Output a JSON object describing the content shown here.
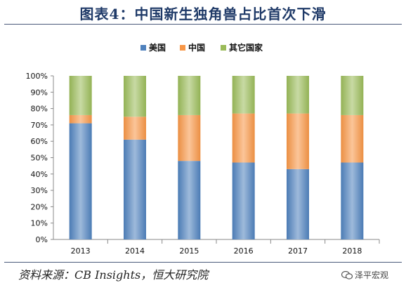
{
  "header": {
    "title": "图表4：中国新生独角兽占比首次下滑"
  },
  "footer": {
    "source": "资料来源：CB Insights，恒大研究院",
    "logo_text": "泽平宏观",
    "logo_icon": "wechat-icon"
  },
  "chart_data": {
    "type": "bar",
    "stacked": true,
    "categories": [
      "2013",
      "2014",
      "2015",
      "2016",
      "2017",
      "2018"
    ],
    "series": [
      {
        "name": "美国",
        "color": "#4f81bd",
        "values": [
          71,
          61,
          48,
          47,
          43,
          47
        ]
      },
      {
        "name": "中国",
        "color": "#f79646",
        "values": [
          5,
          14,
          28,
          30,
          34,
          29
        ]
      },
      {
        "name": "其它国家",
        "color": "#9bbb59",
        "values": [
          24,
          25,
          24,
          23,
          23,
          24
        ]
      }
    ],
    "ylim": [
      0,
      100
    ],
    "yticks": [
      "0%",
      "10%",
      "20%",
      "30%",
      "40%",
      "50%",
      "60%",
      "70%",
      "80%",
      "90%",
      "100%"
    ],
    "grid": false,
    "legend_position": "top"
  }
}
